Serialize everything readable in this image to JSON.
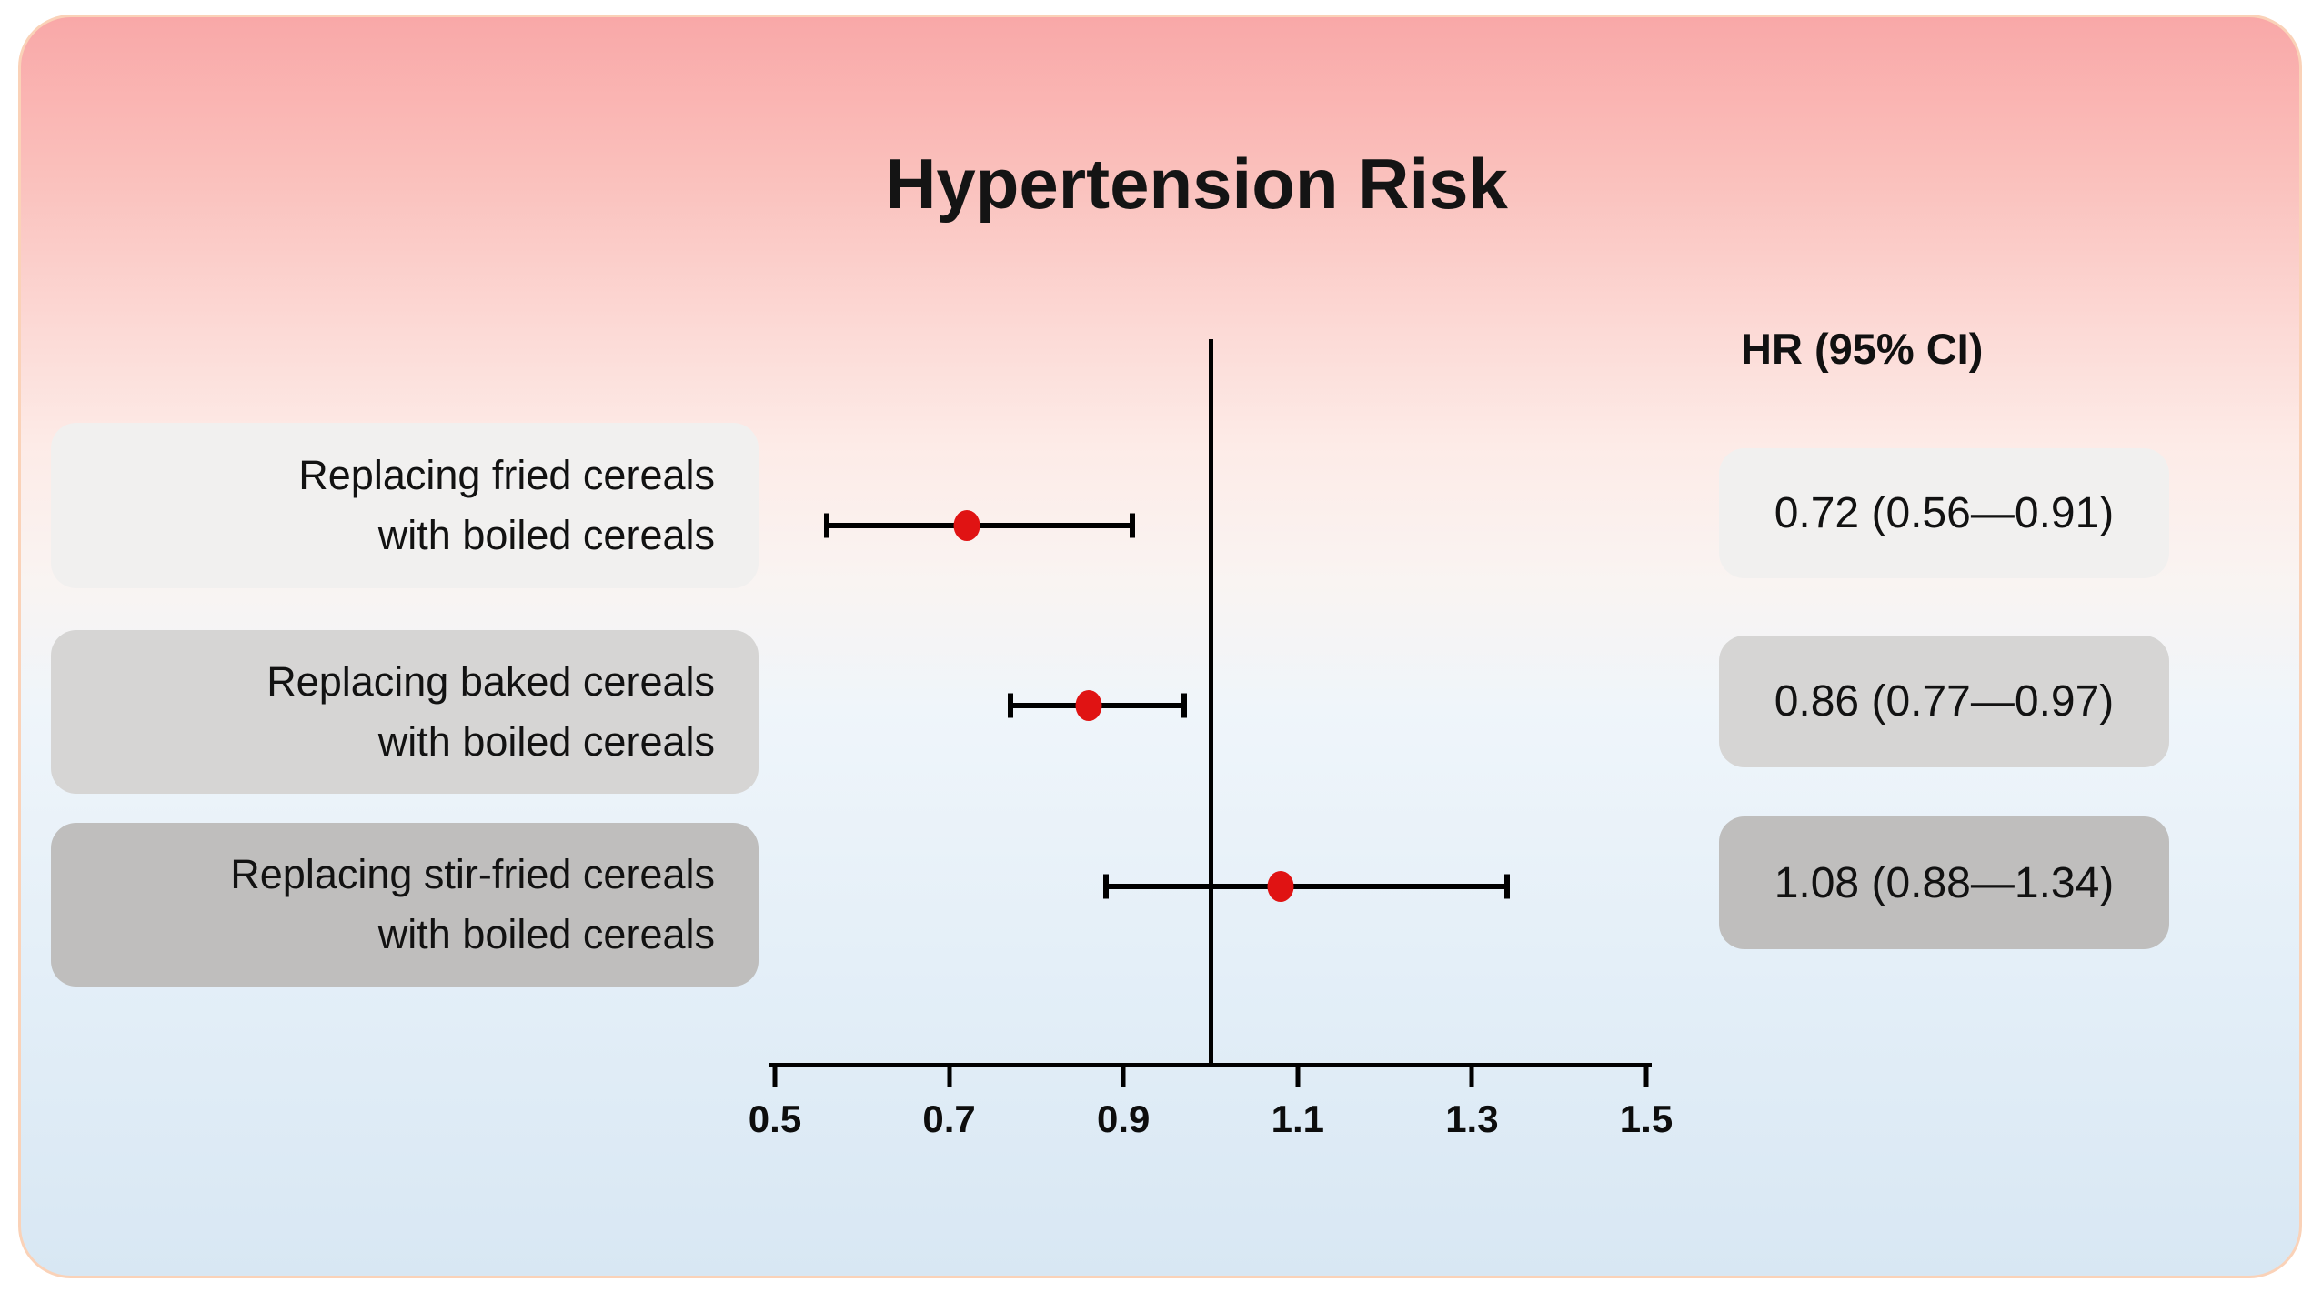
{
  "title": "Hypertension Risk",
  "hr_column_header": "HR (95% CI)",
  "colors": {
    "point": "#e01313",
    "line": "#000000",
    "row_backgrounds": [
      "#f1f0ef",
      "#d6d5d4",
      "#bfbebd"
    ],
    "card_border": "#fad2b8",
    "gradient_top": "#f9a8a8",
    "gradient_bottom": "#d8e7f3"
  },
  "chart_data": {
    "type": "scatter",
    "subtype": "forest-plot",
    "title": "Hypertension Risk",
    "value_column_header": "HR (95% CI)",
    "x_axis": {
      "min": 0.5,
      "max": 1.5,
      "ticks": [
        0.5,
        0.7,
        0.9,
        1.1,
        1.3,
        1.5
      ],
      "tick_labels": [
        "0.5",
        "0.7",
        "0.9",
        "1.1",
        "1.3",
        "1.5"
      ],
      "reference_line": 1.0,
      "grid": false
    },
    "rows": [
      {
        "label": "Replacing fried cereals with boiled cereals",
        "label_lines": [
          "Replacing fried cereals",
          "with boiled cereals"
        ],
        "hr": 0.72,
        "ci_low": 0.56,
        "ci_high": 0.91,
        "hr_text": "0.72 (0.56—0.91)"
      },
      {
        "label": "Replacing baked cereals with boiled cereals",
        "label_lines": [
          "Replacing baked cereals",
          "with boiled cereals"
        ],
        "hr": 0.86,
        "ci_low": 0.77,
        "ci_high": 0.97,
        "hr_text": "0.86 (0.77—0.97)"
      },
      {
        "label": "Replacing stir-fried cereals with boiled cereals",
        "label_lines": [
          "Replacing stir-fried cereals",
          "with boiled cereals"
        ],
        "hr": 1.08,
        "ci_low": 0.88,
        "ci_high": 1.34,
        "hr_text": "1.08 (0.88—1.34)"
      }
    ]
  }
}
